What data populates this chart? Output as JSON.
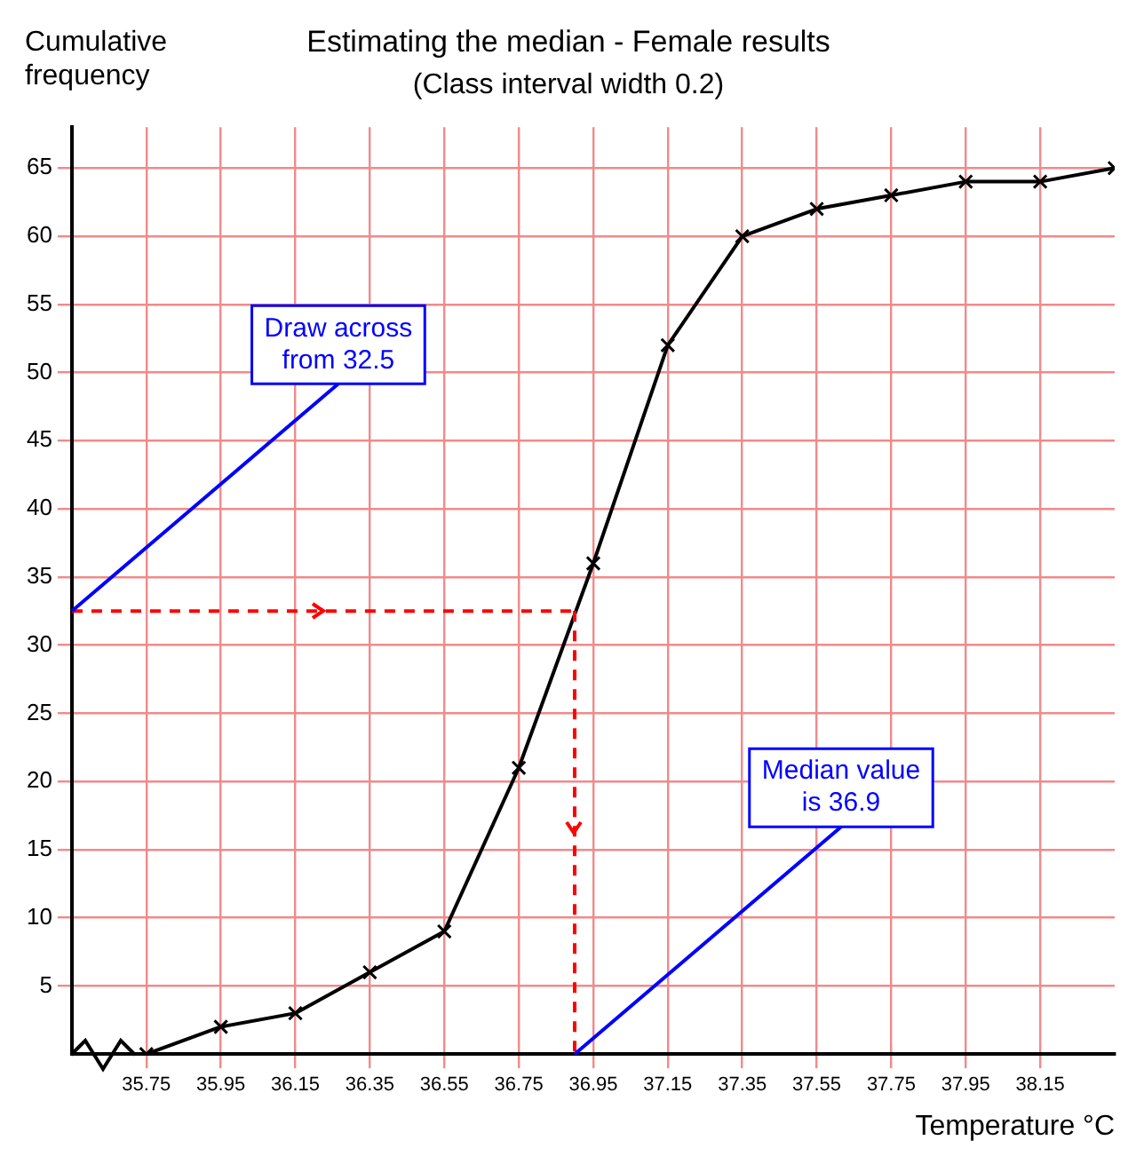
{
  "chart_data": {
    "type": "line",
    "title": "Estimating the median - Female results",
    "subtitle": "(Class interval width 0.2)",
    "xlabel": "Temperature °C",
    "ylabel": "Cumulative frequency",
    "x": [
      35.75,
      35.95,
      36.15,
      36.35,
      36.55,
      36.75,
      36.95,
      37.15,
      37.35,
      37.55,
      37.75,
      37.95,
      38.15,
      38.35
    ],
    "series": [
      {
        "color": "#000000",
        "values": [
          0,
          2,
          3,
          6,
          9,
          21,
          36,
          52,
          60,
          62,
          63,
          64,
          64,
          65
        ]
      }
    ],
    "xlim": [
      35.55,
      38.35
    ],
    "xticks": [
      35.75,
      35.95,
      36.15,
      36.35,
      36.55,
      36.75,
      36.95,
      37.15,
      37.35,
      37.55,
      37.75,
      37.95,
      38.15
    ],
    "ylim": [
      0,
      68
    ],
    "yticks": [
      5,
      10,
      15,
      20,
      25,
      30,
      35,
      40,
      45,
      50,
      55,
      60,
      65
    ],
    "grid": true,
    "legend": false,
    "marker": "cross",
    "line_style": "solid",
    "ref_lines": [
      {
        "axis": "y",
        "value": 32.5,
        "color": "#ff0000",
        "line_style": "dashed"
      },
      {
        "axis": "x",
        "value": 36.9,
        "color": "#ff0000",
        "line_style": "dashed"
      }
    ],
    "annotations": [
      {
        "text": "Draw across from 32.5",
        "x": 35.55,
        "y": 32.5
      },
      {
        "text": "Median value is 36.9",
        "x": 36.9,
        "y": 0
      }
    ]
  }
}
